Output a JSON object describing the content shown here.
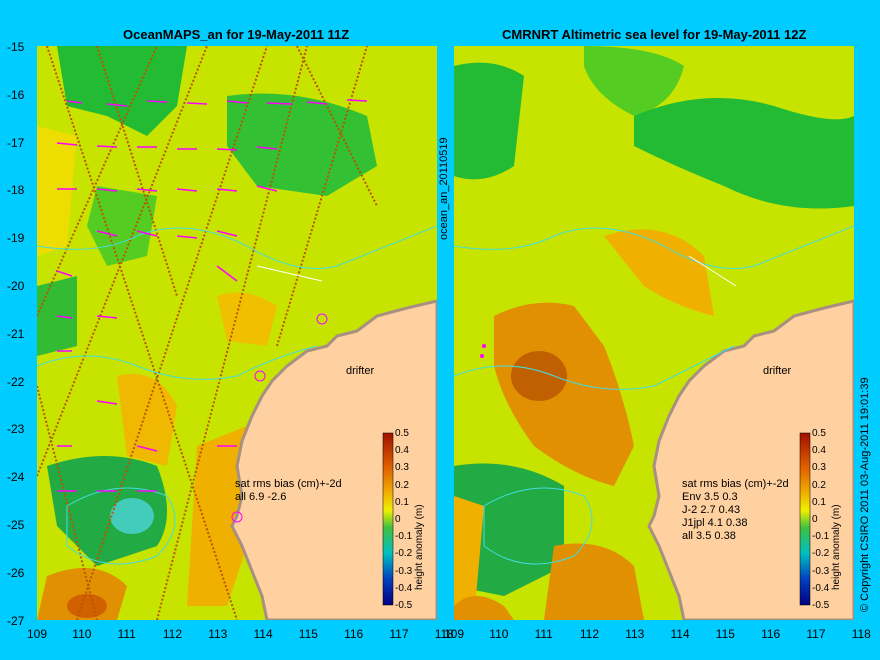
{
  "left": {
    "title": "OceanMAPS_an for 19-May-2011 11Z",
    "stats": [
      "sat rms bias (cm)+-2d",
      "all 6.9 -2.6"
    ]
  },
  "right": {
    "title": "CMRNRT Altimetric sea level  for 19-May-2011 12Z",
    "stats": [
      "sat rms bias (cm)+-2d",
      "Env   3.5 0.3",
      "J-2   2.7 0.43",
      "J1jpl 4.1 0.38",
      "all 3.5 0.38"
    ]
  },
  "y_ticks": [
    "-15",
    "-16",
    "-17",
    "-18",
    "-19",
    "-20",
    "-21",
    "-22",
    "-23",
    "-24",
    "-25",
    "-26",
    "-27"
  ],
  "x_ticks": [
    "109",
    "110",
    "111",
    "112",
    "113",
    "114",
    "115",
    "116",
    "117",
    "118"
  ],
  "colorbar": {
    "label": "height anomaly (m)",
    "ticks": [
      "0.5",
      "0.4",
      "0.3",
      "0.2",
      "0.1",
      "0",
      "-0.1",
      "-0.2",
      "-0.3",
      "-0.4",
      "-0.5"
    ]
  },
  "drifter_label": "drifter",
  "side_label": "ocean_an_20110519",
  "copyright": "© Copyright CSIRO 2011   03-Aug-2011 19:01:39",
  "colors": {
    "background": "#00ccff",
    "land": "#ffd0a0",
    "drifter": "#ff00ff"
  }
}
